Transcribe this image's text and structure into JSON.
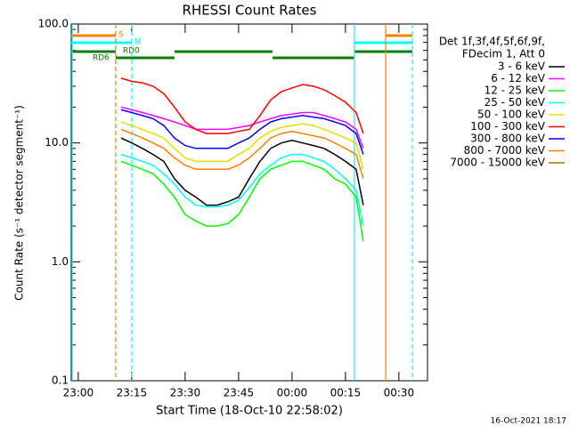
{
  "chart_data": {
    "type": "line",
    "title": "RHESSI Count Rates",
    "x_label": "Start Time (18-Oct-10 22:58:02)",
    "y_label": "Count Rate (s⁻¹ detector segment⁻¹)",
    "legend_title": [
      "Det 1f,3f,4f,5f,6f,9f,",
      "FDecim 1, Att 0"
    ],
    "footer": "16-Oct-2021 18:17",
    "log_y": true,
    "xlim": [
      -1.97,
      98.03
    ],
    "xticks": [
      {
        "value": 0,
        "label": "23:00"
      },
      {
        "value": 15,
        "label": "23:15"
      },
      {
        "value": 30,
        "label": "23:30"
      },
      {
        "value": 45,
        "label": "23:45"
      },
      {
        "value": 60,
        "label": "00:00"
      },
      {
        "value": 75,
        "label": "00:15"
      },
      {
        "value": 90,
        "label": "00:30"
      }
    ],
    "ylim": [
      0.1,
      100
    ],
    "yticks": [
      {
        "value": 0.1,
        "label": "0.1"
      },
      {
        "value": 1,
        "label": "1.0"
      },
      {
        "value": 10,
        "label": "10.0"
      },
      {
        "value": 100,
        "label": "100.0"
      }
    ],
    "x": [
      12,
      15,
      18,
      21,
      24,
      27,
      30,
      33,
      36,
      39,
      42,
      45,
      48,
      51,
      54,
      57,
      60,
      63,
      66,
      69,
      72,
      75,
      78,
      80
    ],
    "series": [
      {
        "name": "3 - 6 keV",
        "color": "#000000",
        "values": [
          11,
          10,
          9,
          8,
          7,
          5,
          4,
          3.5,
          3,
          3,
          3.2,
          3.5,
          5,
          7,
          9,
          10,
          10.5,
          10,
          9.5,
          9,
          8,
          7,
          6,
          3
        ]
      },
      {
        "name": "6 - 12 keV",
        "color": "#ff00ff",
        "values": [
          20,
          19,
          18,
          17,
          16,
          15,
          14,
          13,
          13,
          13,
          13,
          13.5,
          14,
          15,
          16,
          17,
          17.5,
          18,
          18,
          17,
          16,
          15,
          13,
          9
        ]
      },
      {
        "name": "12 - 25 keV",
        "color": "#00ff00",
        "values": [
          7,
          6.5,
          6,
          5.5,
          4.5,
          3.5,
          2.5,
          2.2,
          2,
          2,
          2.1,
          2.5,
          3.5,
          5,
          6,
          6.5,
          7,
          7,
          6.5,
          6,
          5,
          4.5,
          3.5,
          1.5
        ]
      },
      {
        "name": "25 - 50 keV",
        "color": "#00ffff",
        "values": [
          8,
          7.5,
          7,
          6.5,
          5.5,
          4.5,
          3.5,
          3,
          2.9,
          2.9,
          3,
          3.3,
          4.2,
          5.5,
          6.5,
          7.5,
          8,
          8,
          7.5,
          7,
          6,
          5,
          4,
          2
        ]
      },
      {
        "name": "50 - 100 keV",
        "color": "#e0e000",
        "values": [
          15,
          14,
          13,
          12,
          11,
          9,
          7.5,
          7,
          7,
          7,
          7,
          8,
          9,
          11,
          12.5,
          13.5,
          14,
          14.5,
          14,
          13,
          12,
          11,
          10,
          6
        ]
      },
      {
        "name": "100 - 300 keV",
        "color": "#ff0000",
        "values": [
          35,
          33,
          32,
          30,
          26,
          20,
          15,
          13,
          12,
          12,
          12,
          12.5,
          13,
          17,
          23,
          27,
          29,
          31,
          30,
          28,
          25,
          22,
          18,
          12
        ]
      },
      {
        "name": "300 - 800 keV",
        "color": "#0000ff",
        "values": [
          19,
          18,
          17,
          16,
          14,
          11,
          9.5,
          9,
          9,
          9,
          9,
          10,
          11,
          13,
          15,
          16,
          16.5,
          17,
          16.5,
          16,
          15,
          14,
          12,
          8
        ]
      },
      {
        "name": "800 - 7000 keV",
        "color": "#ff8000",
        "values": [
          13,
          12,
          11,
          10,
          9,
          7.5,
          6.5,
          6,
          6,
          6,
          6,
          6.5,
          7.5,
          9,
          11,
          12,
          12.5,
          12,
          11.5,
          11,
          10,
          9,
          8,
          5
        ]
      },
      {
        "name": "7000 - 15000 keV",
        "color": "#a07000",
        "values": [
          null,
          null,
          null,
          null,
          null,
          null,
          null,
          null,
          null,
          null,
          null,
          null,
          null,
          null,
          null,
          null,
          null,
          null,
          null,
          null,
          null,
          null,
          null,
          null
        ]
      }
    ],
    "flags": [
      {
        "label": "S",
        "color": "#ff8000",
        "spans": [
          [
            -1.97,
            10.5
          ],
          [
            86.3,
            93.8
          ]
        ]
      },
      {
        "label": "N",
        "color": "#00ffff",
        "spans": [
          [
            -1.97,
            15
          ],
          [
            77.5,
            93.8
          ]
        ]
      },
      {
        "label": "RD0",
        "color": "#008000",
        "spans": [
          [
            -1.97,
            10.5
          ],
          [
            27,
            54.5
          ],
          [
            77.5,
            93.8
          ]
        ]
      },
      {
        "label": "RD6",
        "color": "#008000",
        "spans": [
          [
            10.5,
            27
          ],
          [
            54.5,
            77.5
          ]
        ]
      }
    ],
    "vlines": [
      {
        "x": -1.97,
        "color": "#00ffff",
        "dashed": false
      },
      {
        "x": 10.5,
        "color": "#ff8000",
        "dashed": true
      },
      {
        "x": 15,
        "color": "#00ffff",
        "dashed": true
      },
      {
        "x": 77.5,
        "color": "#00ffff",
        "dashed": false
      },
      {
        "x": 86.3,
        "color": "#ff8000",
        "dashed": false
      },
      {
        "x": 93.8,
        "color": "#00ffff",
        "dashed": true
      }
    ]
  }
}
